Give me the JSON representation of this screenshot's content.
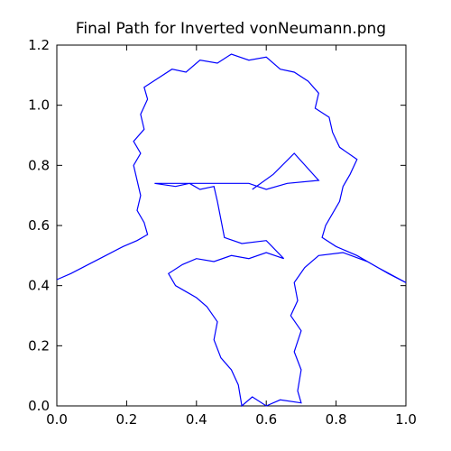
{
  "chart_data": {
    "type": "line",
    "title": "Final Path for Inverted vonNeumann.png",
    "xlim": [
      0,
      1
    ],
    "ylim": [
      0,
      1.2
    ],
    "xticks": [
      {
        "value": 0,
        "label": "0.0"
      },
      {
        "value": 0.2,
        "label": "0.2"
      },
      {
        "value": 0.4,
        "label": "0.4"
      },
      {
        "value": 0.6,
        "label": "0.6"
      },
      {
        "value": 0.8,
        "label": "0.8"
      },
      {
        "value": 1,
        "label": "1.0"
      }
    ],
    "yticks": [
      {
        "value": 0,
        "label": "0.0"
      },
      {
        "value": 0.2,
        "label": "0.2"
      },
      {
        "value": 0.4,
        "label": "0.4"
      },
      {
        "value": 0.6,
        "label": "0.6"
      },
      {
        "value": 0.8,
        "label": "0.8"
      },
      {
        "value": 1,
        "label": "1.0"
      },
      {
        "value": 1.2,
        "label": "1.2"
      }
    ],
    "grid": false,
    "series": [
      {
        "color": "#0000ff",
        "x": [
          0.0,
          0.04,
          0.09,
          0.14,
          0.19,
          0.23,
          0.26,
          0.25,
          0.23,
          0.24,
          0.23,
          0.22,
          0.24,
          0.22,
          0.25,
          0.24,
          0.26,
          0.25,
          0.29,
          0.33,
          0.37,
          0.41,
          0.46,
          0.5,
          0.55,
          0.6,
          0.64,
          0.68,
          0.72,
          0.75,
          0.74,
          0.78,
          0.79,
          0.81,
          0.86,
          0.84,
          0.82,
          0.81,
          0.79,
          0.77,
          0.76,
          0.8,
          0.86,
          0.92,
          1.0,
          0.95,
          0.89,
          0.82,
          0.75,
          0.71,
          0.68,
          0.69,
          0.67,
          0.7,
          0.68,
          0.7,
          0.69,
          0.7,
          0.64,
          0.6,
          0.56,
          0.53,
          0.52,
          0.5,
          0.47,
          0.45,
          0.46,
          0.43,
          0.4,
          0.37,
          0.34,
          0.32,
          0.36,
          0.4,
          0.45,
          0.5,
          0.55,
          0.6,
          0.65,
          0.6,
          0.53,
          0.48,
          0.47,
          0.46,
          0.45,
          0.41,
          0.38,
          0.34,
          0.28,
          0.55,
          0.6,
          0.66,
          0.75,
          0.68,
          0.62,
          0.56
        ],
        "values": [
          0.42,
          0.44,
          0.47,
          0.5,
          0.53,
          0.55,
          0.57,
          0.61,
          0.65,
          0.7,
          0.75,
          0.8,
          0.84,
          0.88,
          0.92,
          0.97,
          1.02,
          1.06,
          1.09,
          1.12,
          1.11,
          1.15,
          1.14,
          1.17,
          1.15,
          1.16,
          1.12,
          1.11,
          1.08,
          1.04,
          0.99,
          0.96,
          0.91,
          0.86,
          0.82,
          0.77,
          0.73,
          0.68,
          0.64,
          0.6,
          0.56,
          0.53,
          0.5,
          0.46,
          0.41,
          0.44,
          0.48,
          0.51,
          0.5,
          0.46,
          0.41,
          0.35,
          0.3,
          0.25,
          0.18,
          0.12,
          0.05,
          0.01,
          0.02,
          0.0,
          0.03,
          0.0,
          0.07,
          0.12,
          0.16,
          0.22,
          0.28,
          0.33,
          0.36,
          0.38,
          0.4,
          0.44,
          0.47,
          0.49,
          0.48,
          0.5,
          0.49,
          0.51,
          0.49,
          0.55,
          0.54,
          0.56,
          0.62,
          0.68,
          0.73,
          0.72,
          0.74,
          0.73,
          0.74,
          0.74,
          0.72,
          0.74,
          0.75,
          0.84,
          0.77,
          0.72
        ]
      }
    ]
  }
}
